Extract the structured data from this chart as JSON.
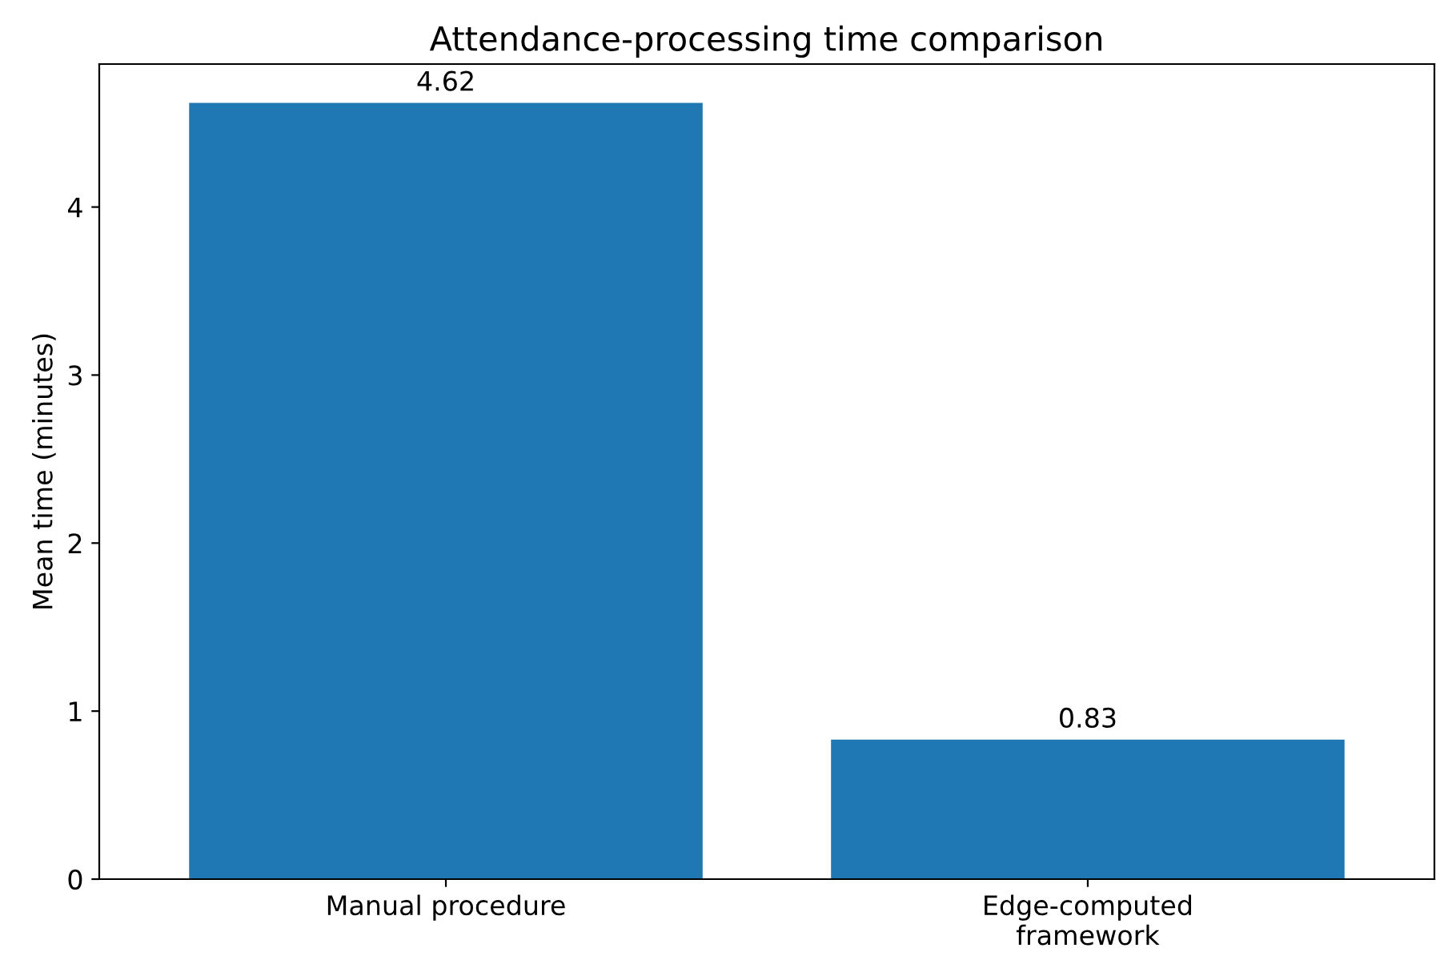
{
  "chart_data": {
    "type": "bar",
    "title": "Attendance-processing time comparison",
    "ylabel": "Mean time (minutes)",
    "categories": [
      "Manual procedure",
      "Edge-computed\nframework"
    ],
    "values": [
      4.62,
      0.83
    ],
    "color": "#1f77b4",
    "data_labels": true,
    "ylim": [
      0,
      4.851
    ],
    "yticks": [
      0,
      1,
      2,
      3,
      4
    ],
    "grid": false,
    "legend": false
  }
}
